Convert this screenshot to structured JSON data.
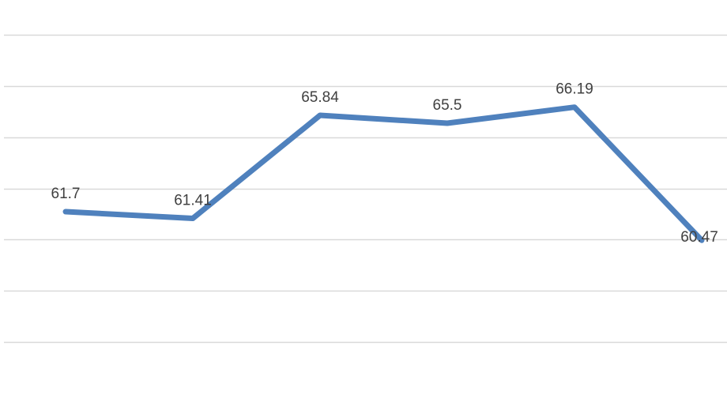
{
  "chart_data": {
    "type": "line",
    "categories": [
      "",
      "",
      "",
      "",
      "",
      ""
    ],
    "series": [
      {
        "values": [
          61.7,
          61.41,
          65.84,
          65.5,
          66.19,
          60.47
        ],
        "labels": [
          "61.7",
          "61.41",
          "65.84",
          "65.5",
          "66.19",
          "60.47"
        ],
        "color": "#4f81bd"
      }
    ],
    "ylim": [
      56,
      70
    ],
    "y_gridlines": [
      56.1,
      58.3,
      60.5,
      62.7,
      64.9,
      67.1,
      69.3,
      71.5
    ],
    "grid": true,
    "gridline_color": "#d9d9d9",
    "legend": "none",
    "data_labels": "above"
  }
}
